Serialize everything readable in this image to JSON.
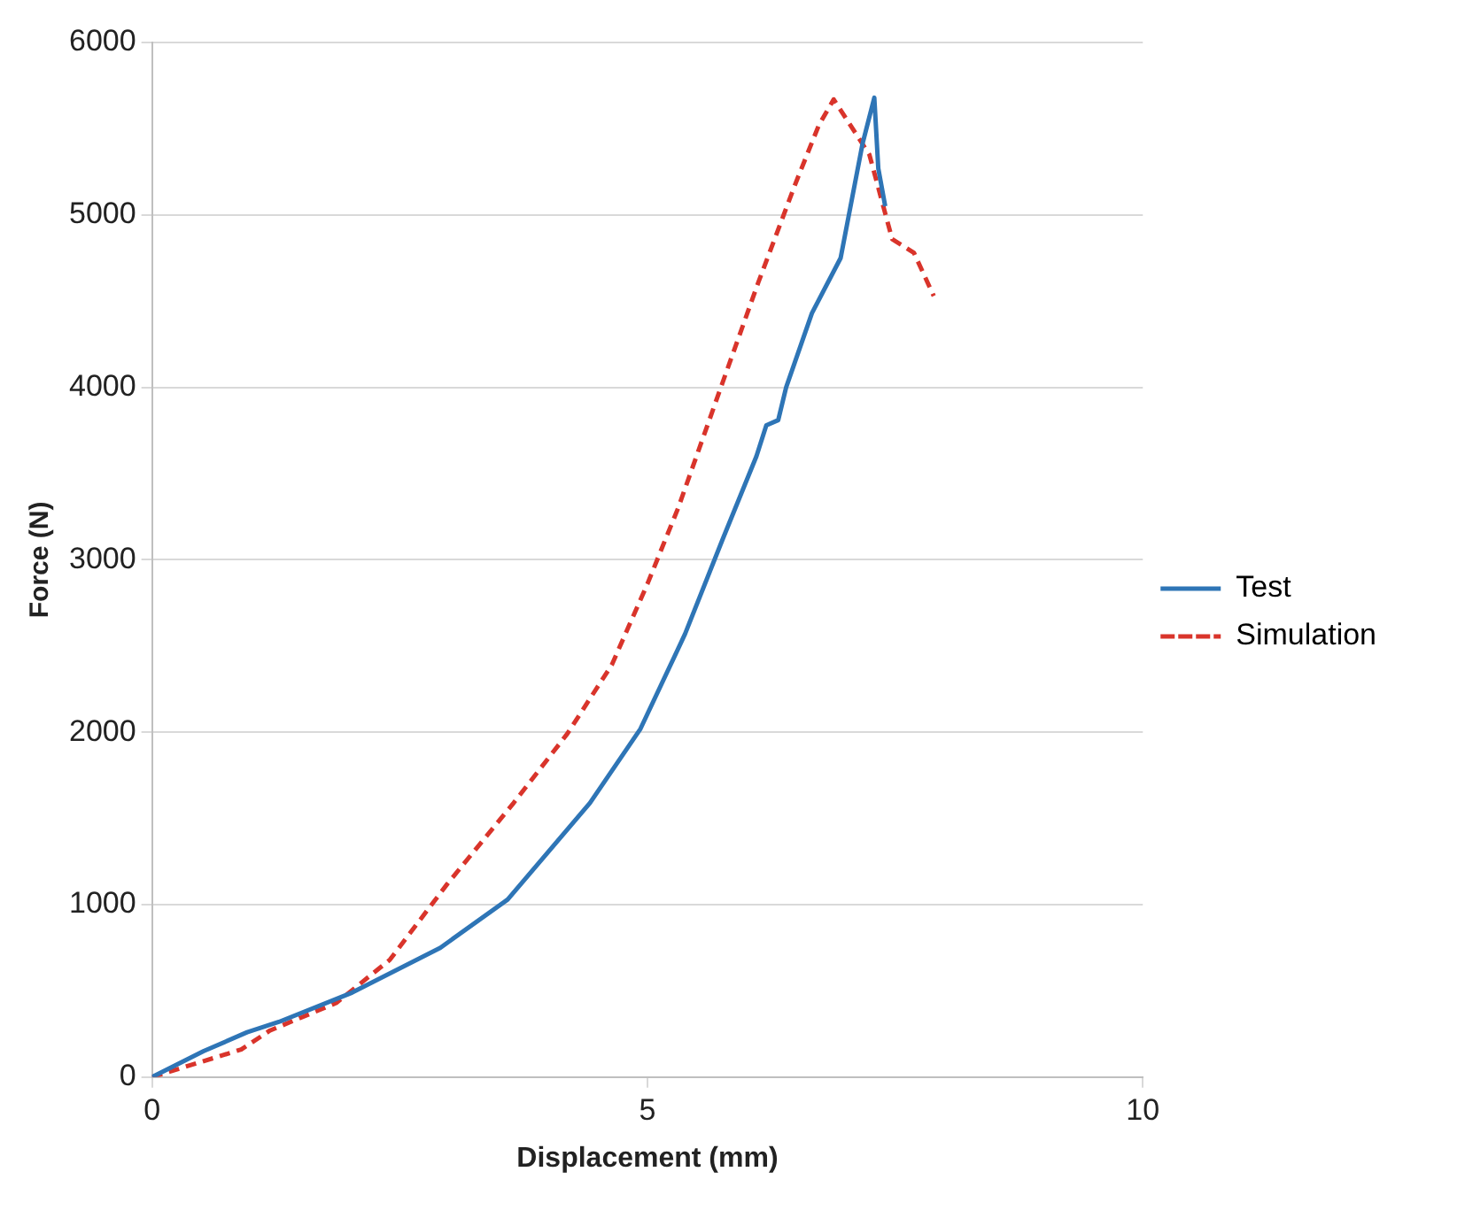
{
  "chart_data": {
    "type": "line",
    "xlabel": "Displacement (mm)",
    "ylabel": "Force (N)",
    "xlim": [
      0,
      10
    ],
    "xticks": [
      0,
      5,
      10
    ],
    "ylim": [
      0,
      6000
    ],
    "yticks": [
      0,
      1000,
      2000,
      3000,
      4000,
      5000,
      6000
    ],
    "grid": "y",
    "legend": "right",
    "marker": "none",
    "series": [
      {
        "name": "Test",
        "color": "#2e75b6",
        "line_style": "solid",
        "x": [
          0,
          0.52,
          0.96,
          1.28,
          2.02,
          2.91,
          3.59,
          4.42,
          4.93,
          5.38,
          5.76,
          6.1,
          6.2,
          6.32,
          6.4,
          6.66,
          6.95,
          7.17,
          7.29,
          7.33,
          7.4
        ],
        "values": [
          0,
          150,
          260,
          320,
          490,
          750,
          1030,
          1590,
          2020,
          2570,
          3120,
          3600,
          3780,
          3810,
          4000,
          4430,
          4750,
          5410,
          5680,
          5270,
          5050
        ]
      },
      {
        "name": "Simulation",
        "color": "#d9342b",
        "line_style": "dashed",
        "x": [
          0,
          0.9,
          1.19,
          1.86,
          2.4,
          2.98,
          3.65,
          4.19,
          4.64,
          5.0,
          5.31,
          5.76,
          6.12,
          6.5,
          6.73,
          6.88,
          7.24,
          7.47,
          7.69,
          7.89
        ],
        "values": [
          0,
          160,
          270,
          430,
          680,
          1120,
          1590,
          1990,
          2390,
          2860,
          3300,
          4030,
          4610,
          5190,
          5520,
          5670,
          5350,
          4860,
          4780,
          4530
        ]
      }
    ]
  }
}
